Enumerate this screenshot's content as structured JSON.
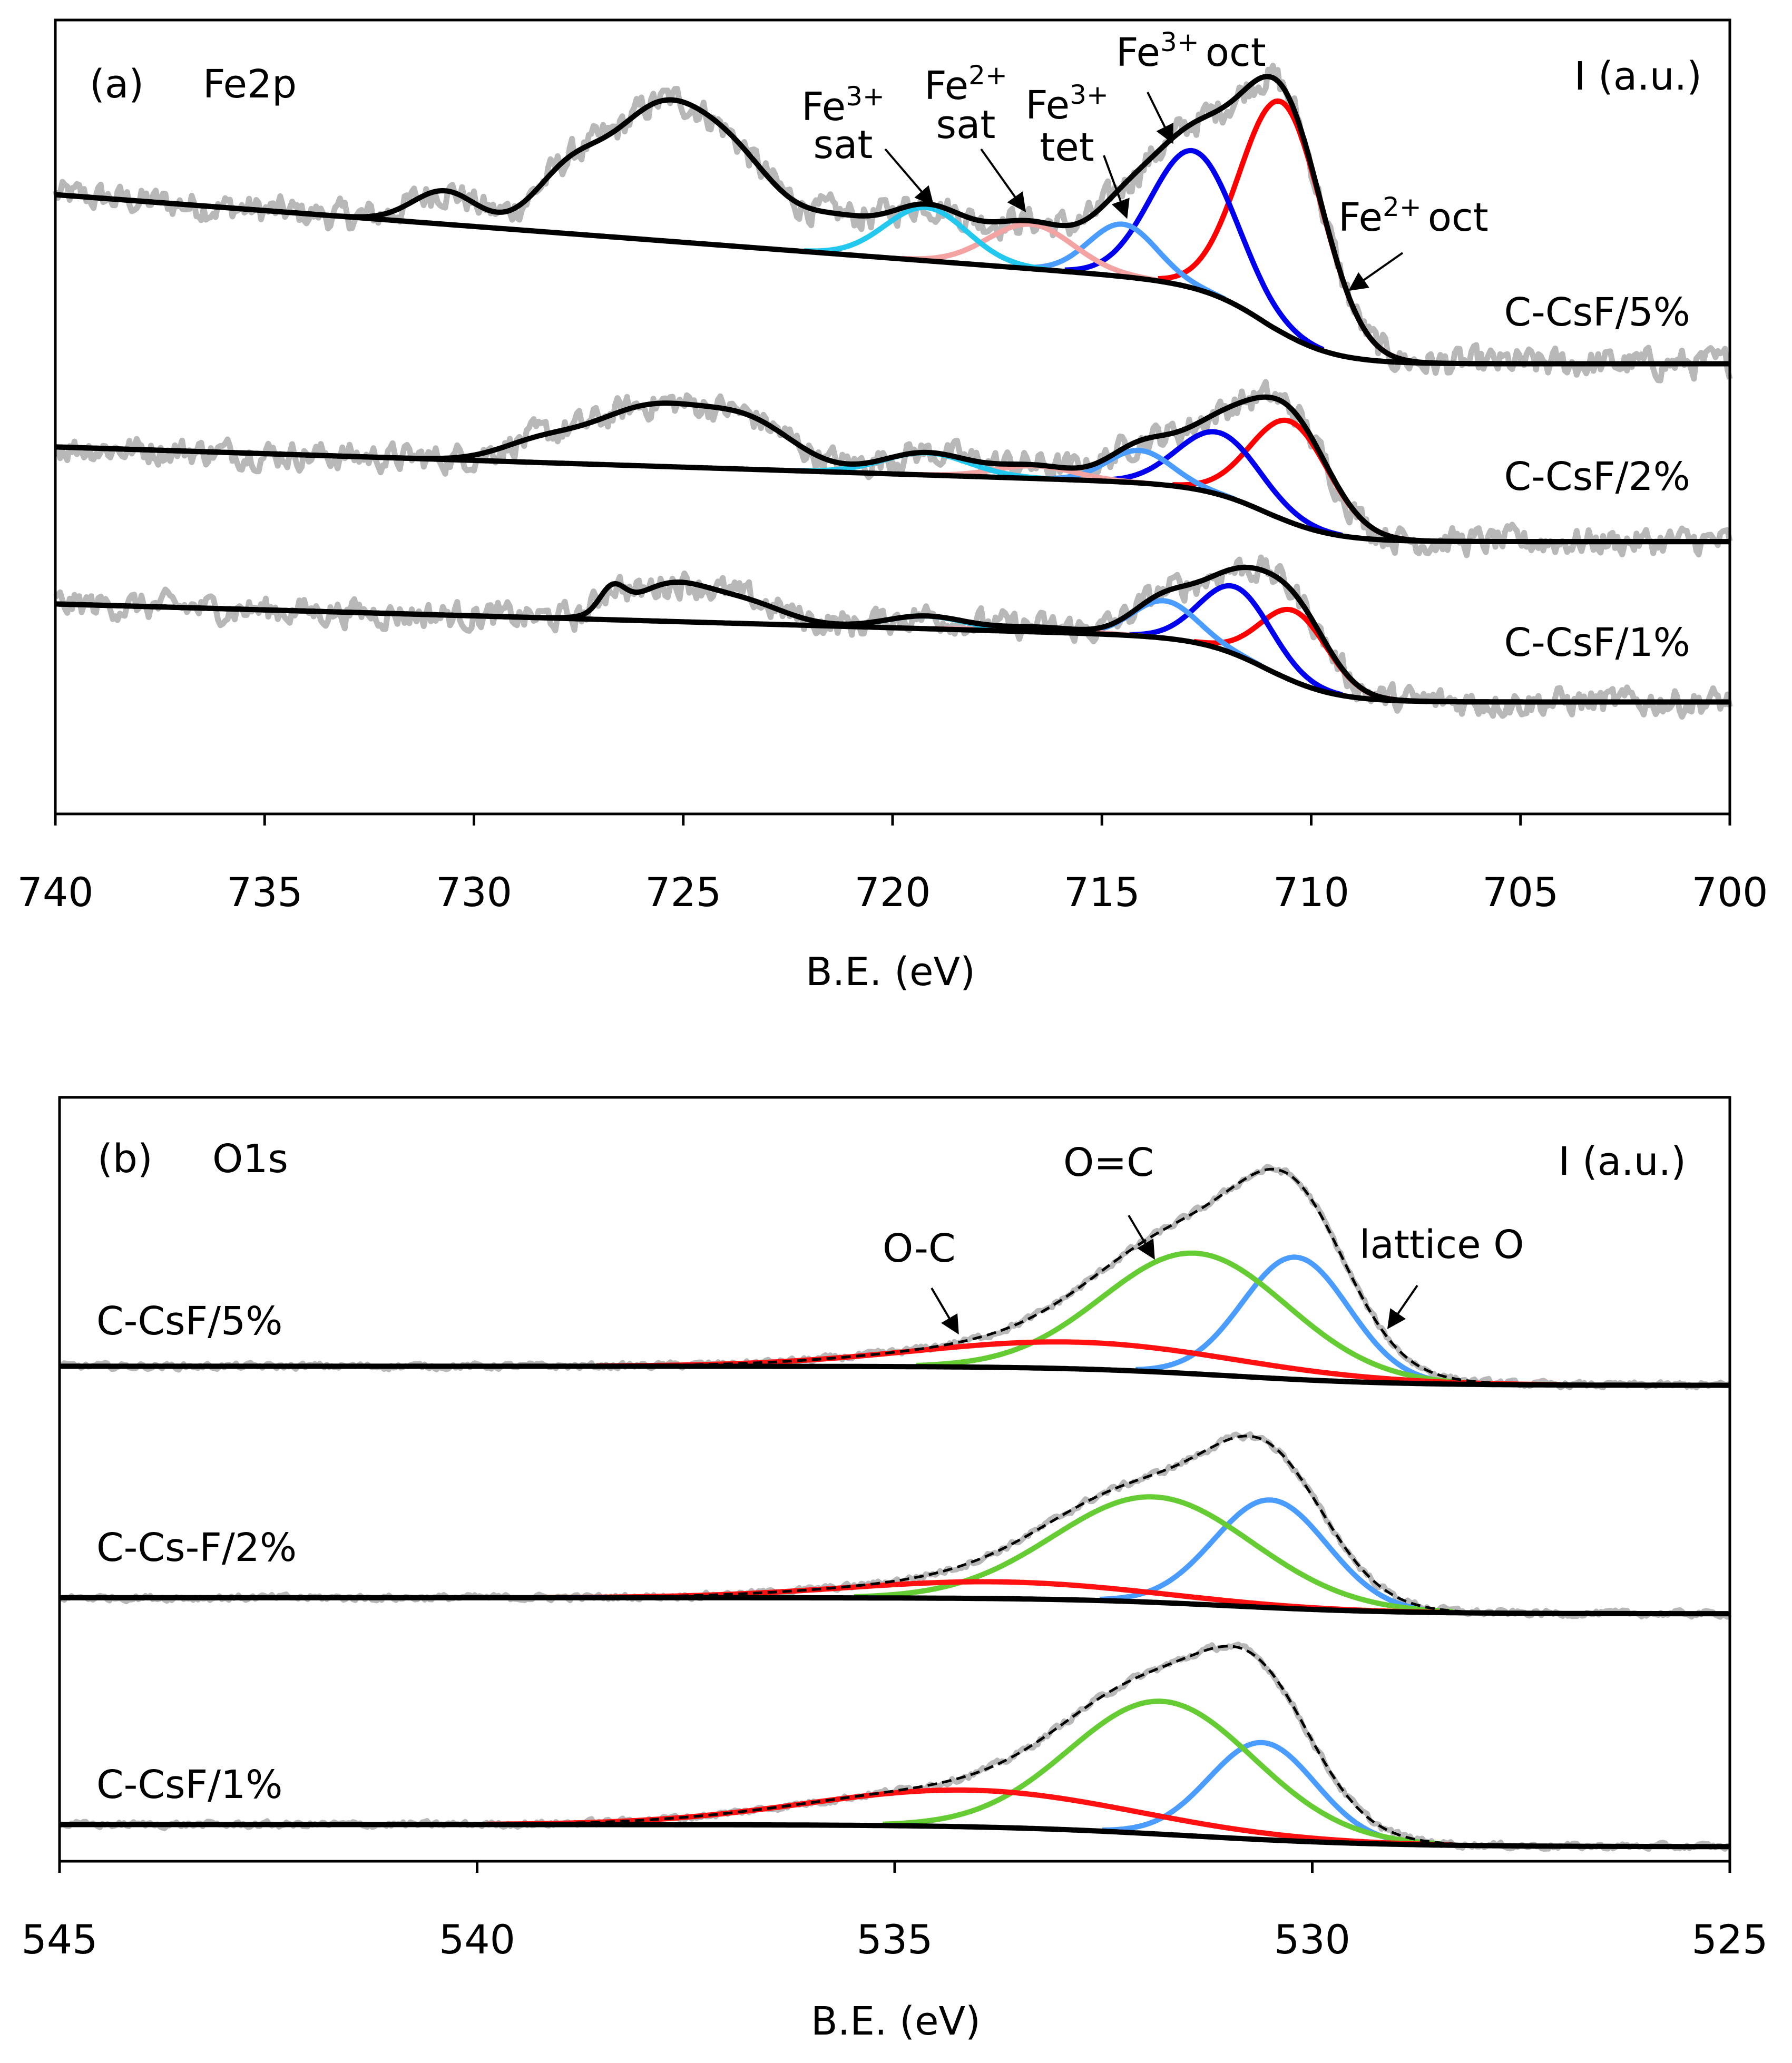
{
  "chart_data": [
    {
      "type": "line",
      "panel": "(a)",
      "title": "Fe2p",
      "xlabel": "B.E. (eV)",
      "ylabel": "I (a.u.)",
      "xlim": [
        740,
        700
      ],
      "ylim": [
        0,
        100
      ],
      "xticks": [
        740,
        735,
        730,
        725,
        720,
        715,
        710,
        705,
        700
      ],
      "grid": false,
      "peak_labels": [
        {
          "id": "fe3sat",
          "base": "Fe",
          "sup": "3+",
          "line2": "sat"
        },
        {
          "id": "fe2sat",
          "base": "Fe",
          "sup": "2+",
          "line2": "sat"
        },
        {
          "id": "fe3tet",
          "base": "Fe",
          "sup": "3+",
          "line2": "tet"
        },
        {
          "id": "fe3oct",
          "base": "Fe",
          "sup": "3+",
          "line2": "oct"
        },
        {
          "id": "fe2oct",
          "base": "Fe",
          "sup": "2+",
          "line2": "oct"
        }
      ],
      "colors": {
        "fe2oct": "#ff0000",
        "fe3oct": "#0000ee",
        "fe3tet": "#4a9cff",
        "fe2sat": "#f4a3a3",
        "fe3sat": "#22c8ee",
        "raw": "#b8b8b8",
        "fit": "#000000"
      },
      "series": [
        {
          "name": "C-CsF/5%",
          "noise": 1.6,
          "bg": {
            "base": 56.7,
            "step": 9.7,
            "center": 711,
            "width": 0.8,
            "slope": 0.4
          },
          "peaks": [
            {
              "id": "fe2oct",
              "center": 710.7,
              "height": 29,
              "fwhm": 2.3
            },
            {
              "id": "fe3oct",
              "center": 712.8,
              "height": 17.3,
              "fwhm": 2.4
            },
            {
              "id": "fe3tet",
              "center": 714.5,
              "height": 6.6,
              "fwhm": 1.9
            },
            {
              "id": "fe2sat",
              "center": 716.7,
              "height": 5.6,
              "fwhm": 2.4
            },
            {
              "id": "fe3sat",
              "center": 719.2,
              "height": 6.7,
              "fwhm": 2.3
            },
            {
              "id": "",
              "center": 721.3,
              "height": 3.5,
              "fwhm": 2.0
            },
            {
              "id": "",
              "center": 724.0,
              "height": 12,
              "fwhm": 2.8
            },
            {
              "id": "",
              "center": 725.8,
              "height": 12.5,
              "fwhm": 2.4
            },
            {
              "id": "",
              "center": 727.7,
              "height": 7.5,
              "fwhm": 2.0
            },
            {
              "id": "",
              "center": 730.7,
              "height": 4.2,
              "fwhm": 1.8
            }
          ]
        },
        {
          "name": "C-CsF/2%",
          "noise": 1.5,
          "bg": {
            "base": 34.3,
            "step": 7,
            "center": 711,
            "width": 0.8,
            "slope": 0.17
          },
          "peaks": [
            {
              "id": "fe2oct",
              "center": 710.5,
              "height": 12.7,
              "fwhm": 2.2
            },
            {
              "id": "fe3oct",
              "center": 712.2,
              "height": 7.8,
              "fwhm": 2.3
            },
            {
              "id": "fe3tet",
              "center": 714.1,
              "height": 4.1,
              "fwhm": 1.8
            },
            {
              "id": "fe2sat",
              "center": 716.6,
              "height": 1.6,
              "fwhm": 2.2
            },
            {
              "id": "fe3sat",
              "center": 719.2,
              "height": 2.8,
              "fwhm": 2.4
            },
            {
              "id": "",
              "center": 723.3,
              "height": 4.5,
              "fwhm": 2.5
            },
            {
              "id": "",
              "center": 725.7,
              "height": 7.5,
              "fwhm": 3.5
            },
            {
              "id": "",
              "center": 728.5,
              "height": 2.0,
              "fwhm": 2.2
            }
          ]
        },
        {
          "name": "C-CsF/1%",
          "noise": 1.5,
          "bg": {
            "base": 14.1,
            "step": 8,
            "center": 711,
            "width": 0.8,
            "slope": 0.15
          },
          "peaks": [
            {
              "id": "fe2oct",
              "center": 710.4,
              "height": 8.9,
              "fwhm": 1.9
            },
            {
              "id": "fe3oct",
              "center": 711.8,
              "height": 8.5,
              "fwhm": 2.0
            },
            {
              "id": "fe3tet",
              "center": 713.5,
              "height": 4.7,
              "fwhm": 1.8
            },
            {
              "id": "fe2sat",
              "center": 716.5,
              "height": 0.6,
              "fwhm": 2.2
            },
            {
              "id": "fe3sat",
              "center": 719.2,
              "height": 1.6,
              "fwhm": 2.2
            },
            {
              "id": "",
              "center": 723.5,
              "height": 2.5,
              "fwhm": 2.2
            },
            {
              "id": "",
              "center": 725.3,
              "height": 4.5,
              "fwhm": 2.2
            },
            {
              "id": "",
              "center": 726.7,
              "height": 3.0,
              "fwhm": 0.7
            }
          ]
        }
      ]
    },
    {
      "type": "line",
      "panel": "(b)",
      "title": "O1s",
      "xlabel": "B.E. (eV)",
      "ylabel": "I (a.u.)",
      "xlim": [
        545,
        525
      ],
      "ylim": [
        0,
        100
      ],
      "xticks": [
        545,
        540,
        535,
        530,
        525
      ],
      "grid": false,
      "peak_labels": [
        {
          "id": "oc",
          "text": "O-C"
        },
        {
          "id": "odc",
          "text": "O=C"
        },
        {
          "id": "lat",
          "text": "lattice O"
        }
      ],
      "colors": {
        "lat": "#4a9cff",
        "odc": "#66cc33",
        "oc": "#ff1111",
        "raw": "#b8b8b8",
        "fit": "#000000"
      },
      "series": [
        {
          "name": "C-CsF/5%",
          "noise": 0.35,
          "bg": {
            "base": 62.3,
            "step": 2.5,
            "center": 531,
            "width": 1.0,
            "slope": 0.0
          },
          "peaks": [
            {
              "id": "lat",
              "center": 530.2,
              "height": 16,
              "fwhm": 1.5
            },
            {
              "id": "odc",
              "center": 531.4,
              "height": 15.8,
              "fwhm": 2.6
            },
            {
              "id": "oc",
              "center": 532.8,
              "height": 3.5,
              "fwhm": 4.5
            }
          ]
        },
        {
          "name": "C-Cs-F/2%",
          "noise": 0.35,
          "bg": {
            "base": 32.4,
            "step": 2.1,
            "center": 531,
            "width": 1.0,
            "slope": 0.0
          },
          "peaks": [
            {
              "id": "lat",
              "center": 530.5,
              "height": 14.1,
              "fwhm": 1.6
            },
            {
              "id": "odc",
              "center": 531.9,
              "height": 13.8,
              "fwhm": 2.8
            },
            {
              "id": "oc",
              "center": 533.8,
              "height": 2.2,
              "fwhm": 4.2
            }
          ]
        },
        {
          "name": "C-CsF/1%",
          "noise": 0.35,
          "bg": {
            "base": 1.9,
            "step": 2.9,
            "center": 531.5,
            "width": 1.2,
            "slope": 0.0
          },
          "peaks": [
            {
              "id": "lat",
              "center": 530.6,
              "height": 12.7,
              "fwhm": 1.5
            },
            {
              "id": "odc",
              "center": 531.8,
              "height": 17.4,
              "fwhm": 2.6
            },
            {
              "id": "oc",
              "center": 534.1,
              "height": 4.8,
              "fwhm": 4.5
            }
          ]
        }
      ]
    }
  ]
}
